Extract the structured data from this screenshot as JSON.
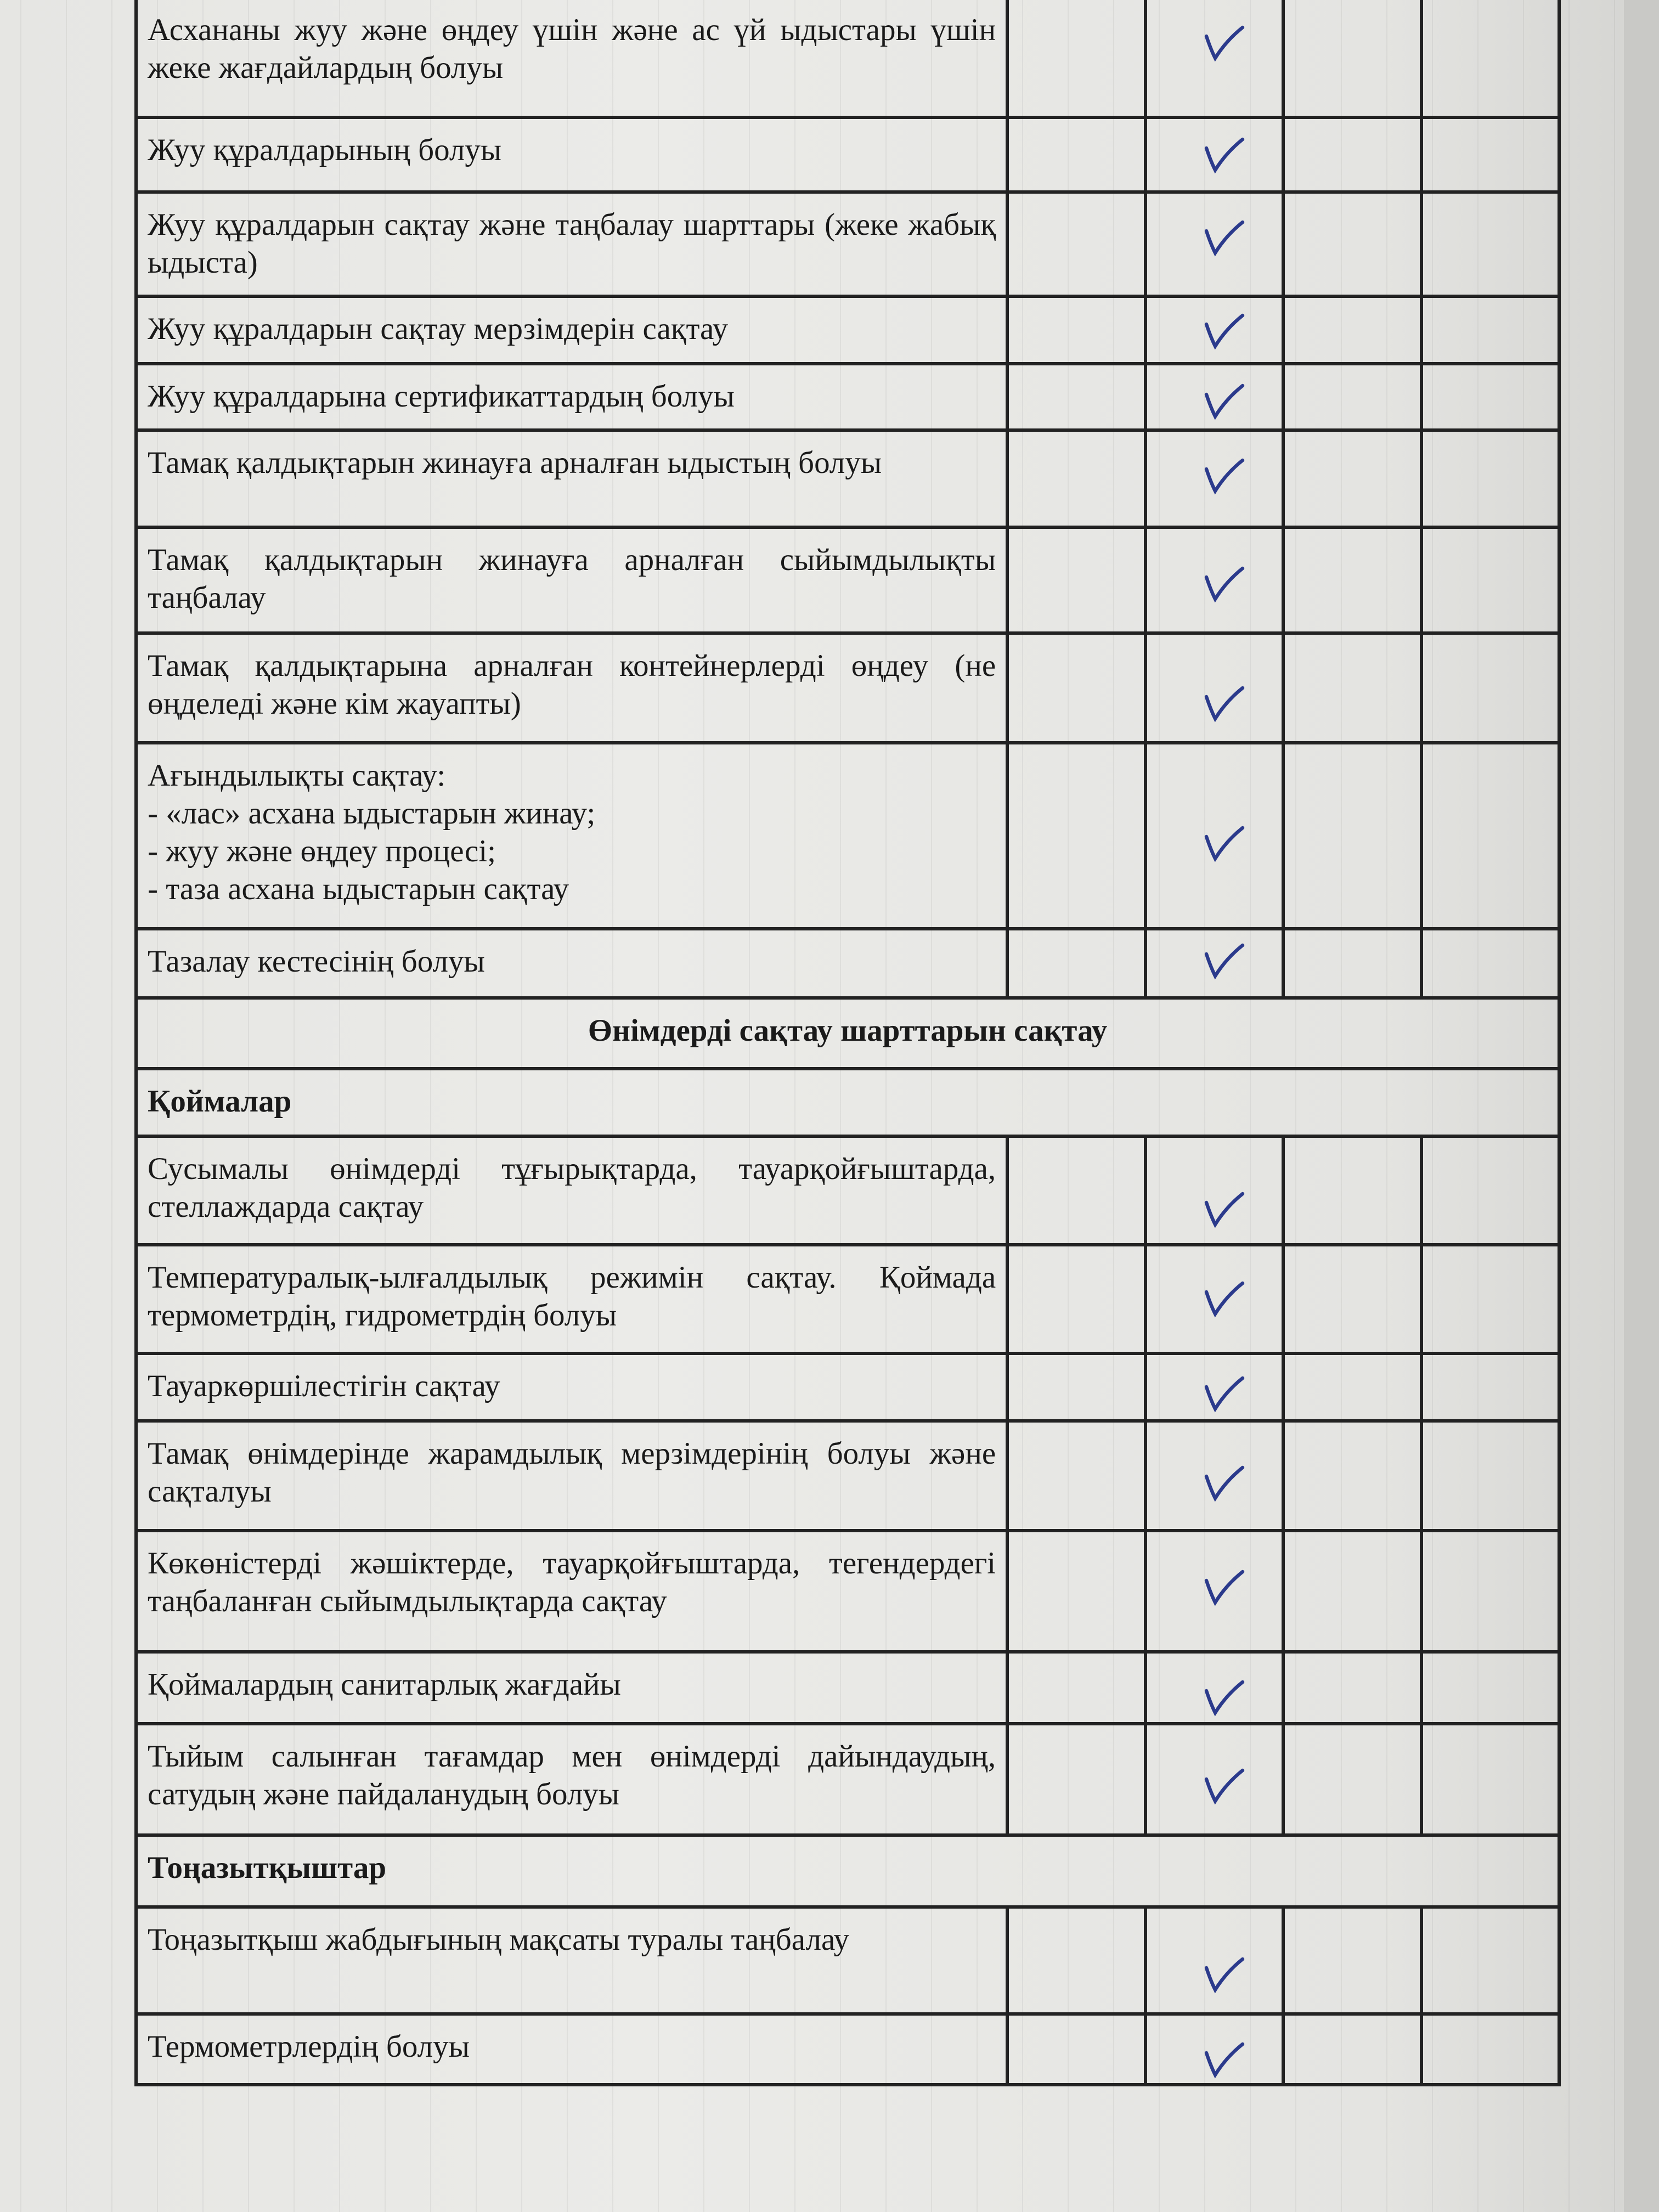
{
  "document": {
    "rows": [
      {
        "type": "item",
        "text": "Асхананы жуу және өңдеу үшін және ас үй ыдыстары үшін жеке жағдайлардың болуы",
        "checked": true
      },
      {
        "type": "item",
        "text": "Жуу құралдарының болуы",
        "checked": true
      },
      {
        "type": "item",
        "text": "Жуу құралдарын сақтау және таңбалау шарттары (жеке жабық ыдыста)",
        "checked": true
      },
      {
        "type": "item",
        "text": "Жуу құралдарын сақтау мерзімдерін сақтау",
        "checked": true
      },
      {
        "type": "item",
        "text": "Жуу құралдарына сертификаттардың болуы",
        "checked": true
      },
      {
        "type": "item",
        "text": "Тамақ қалдықтарын жинауға арналған ыдыстың болуы",
        "checked": true
      },
      {
        "type": "item",
        "text": "Тамақ қалдықтарын жинауға арналған сыйымдылықты таңбалау",
        "checked": true
      },
      {
        "type": "item",
        "text": "Тамақ қалдықтарына арналған контейнерлерді өңдеу (не өңделеді және кім жауапты)",
        "checked": true
      },
      {
        "type": "item",
        "lines": [
          "Ағындылықты сақтау:",
          "- «лас» асхана ыдыстарын жинау;",
          "- жуу және өңдеу процесі;",
          "- таза асхана ыдыстарын сақтау"
        ],
        "checked": true
      },
      {
        "type": "item",
        "text": "Тазалау кестесінің болуы",
        "checked": true
      },
      {
        "type": "section",
        "text": "Өнімдерді сақтау шарттарын сақтау"
      },
      {
        "type": "sub",
        "text": "Қоймалар"
      },
      {
        "type": "item",
        "text": "Сусымалы өнімдерді тұғырықтарда, тауарқойғыштарда, стеллаждарда сақтау",
        "checked": true
      },
      {
        "type": "item",
        "text": "Температуралық-ылғалдылық режимін сақтау. Қоймада термометрдің, гидрометрдің болуы",
        "checked": true
      },
      {
        "type": "item",
        "text": "Тауаркөршілестігін сақтау",
        "checked": true
      },
      {
        "type": "item",
        "text": "Тамақ өнімдерінде жарамдылық мерзімдерінің болуы және сақталуы",
        "checked": true
      },
      {
        "type": "item",
        "text": "Көкөністерді жәшіктерде, тауарқойғыштарда, тегендердегі таңбаланған сыйымдылықтарда сақтау",
        "checked": true
      },
      {
        "type": "item",
        "text": "Қоймалардың санитарлық жағдайы",
        "checked": true
      },
      {
        "type": "item",
        "text": "Тыйым салынған тағамдар мен өнімдерді дайындаудың, сатудың және пайдаланудың болуы",
        "checked": true
      },
      {
        "type": "sub",
        "text": "Тоңазытқыштар"
      },
      {
        "type": "item",
        "text": "Тоңазытқыш жабдығының мақсаты туралы таңбалау",
        "checked": true
      },
      {
        "type": "item",
        "text": "Термометрлердің болуы",
        "checked": true
      }
    ]
  },
  "colors": {
    "ink": "#1a1a1a",
    "check_mark": "#2b3a8c",
    "paper": "#e8e8e5"
  }
}
